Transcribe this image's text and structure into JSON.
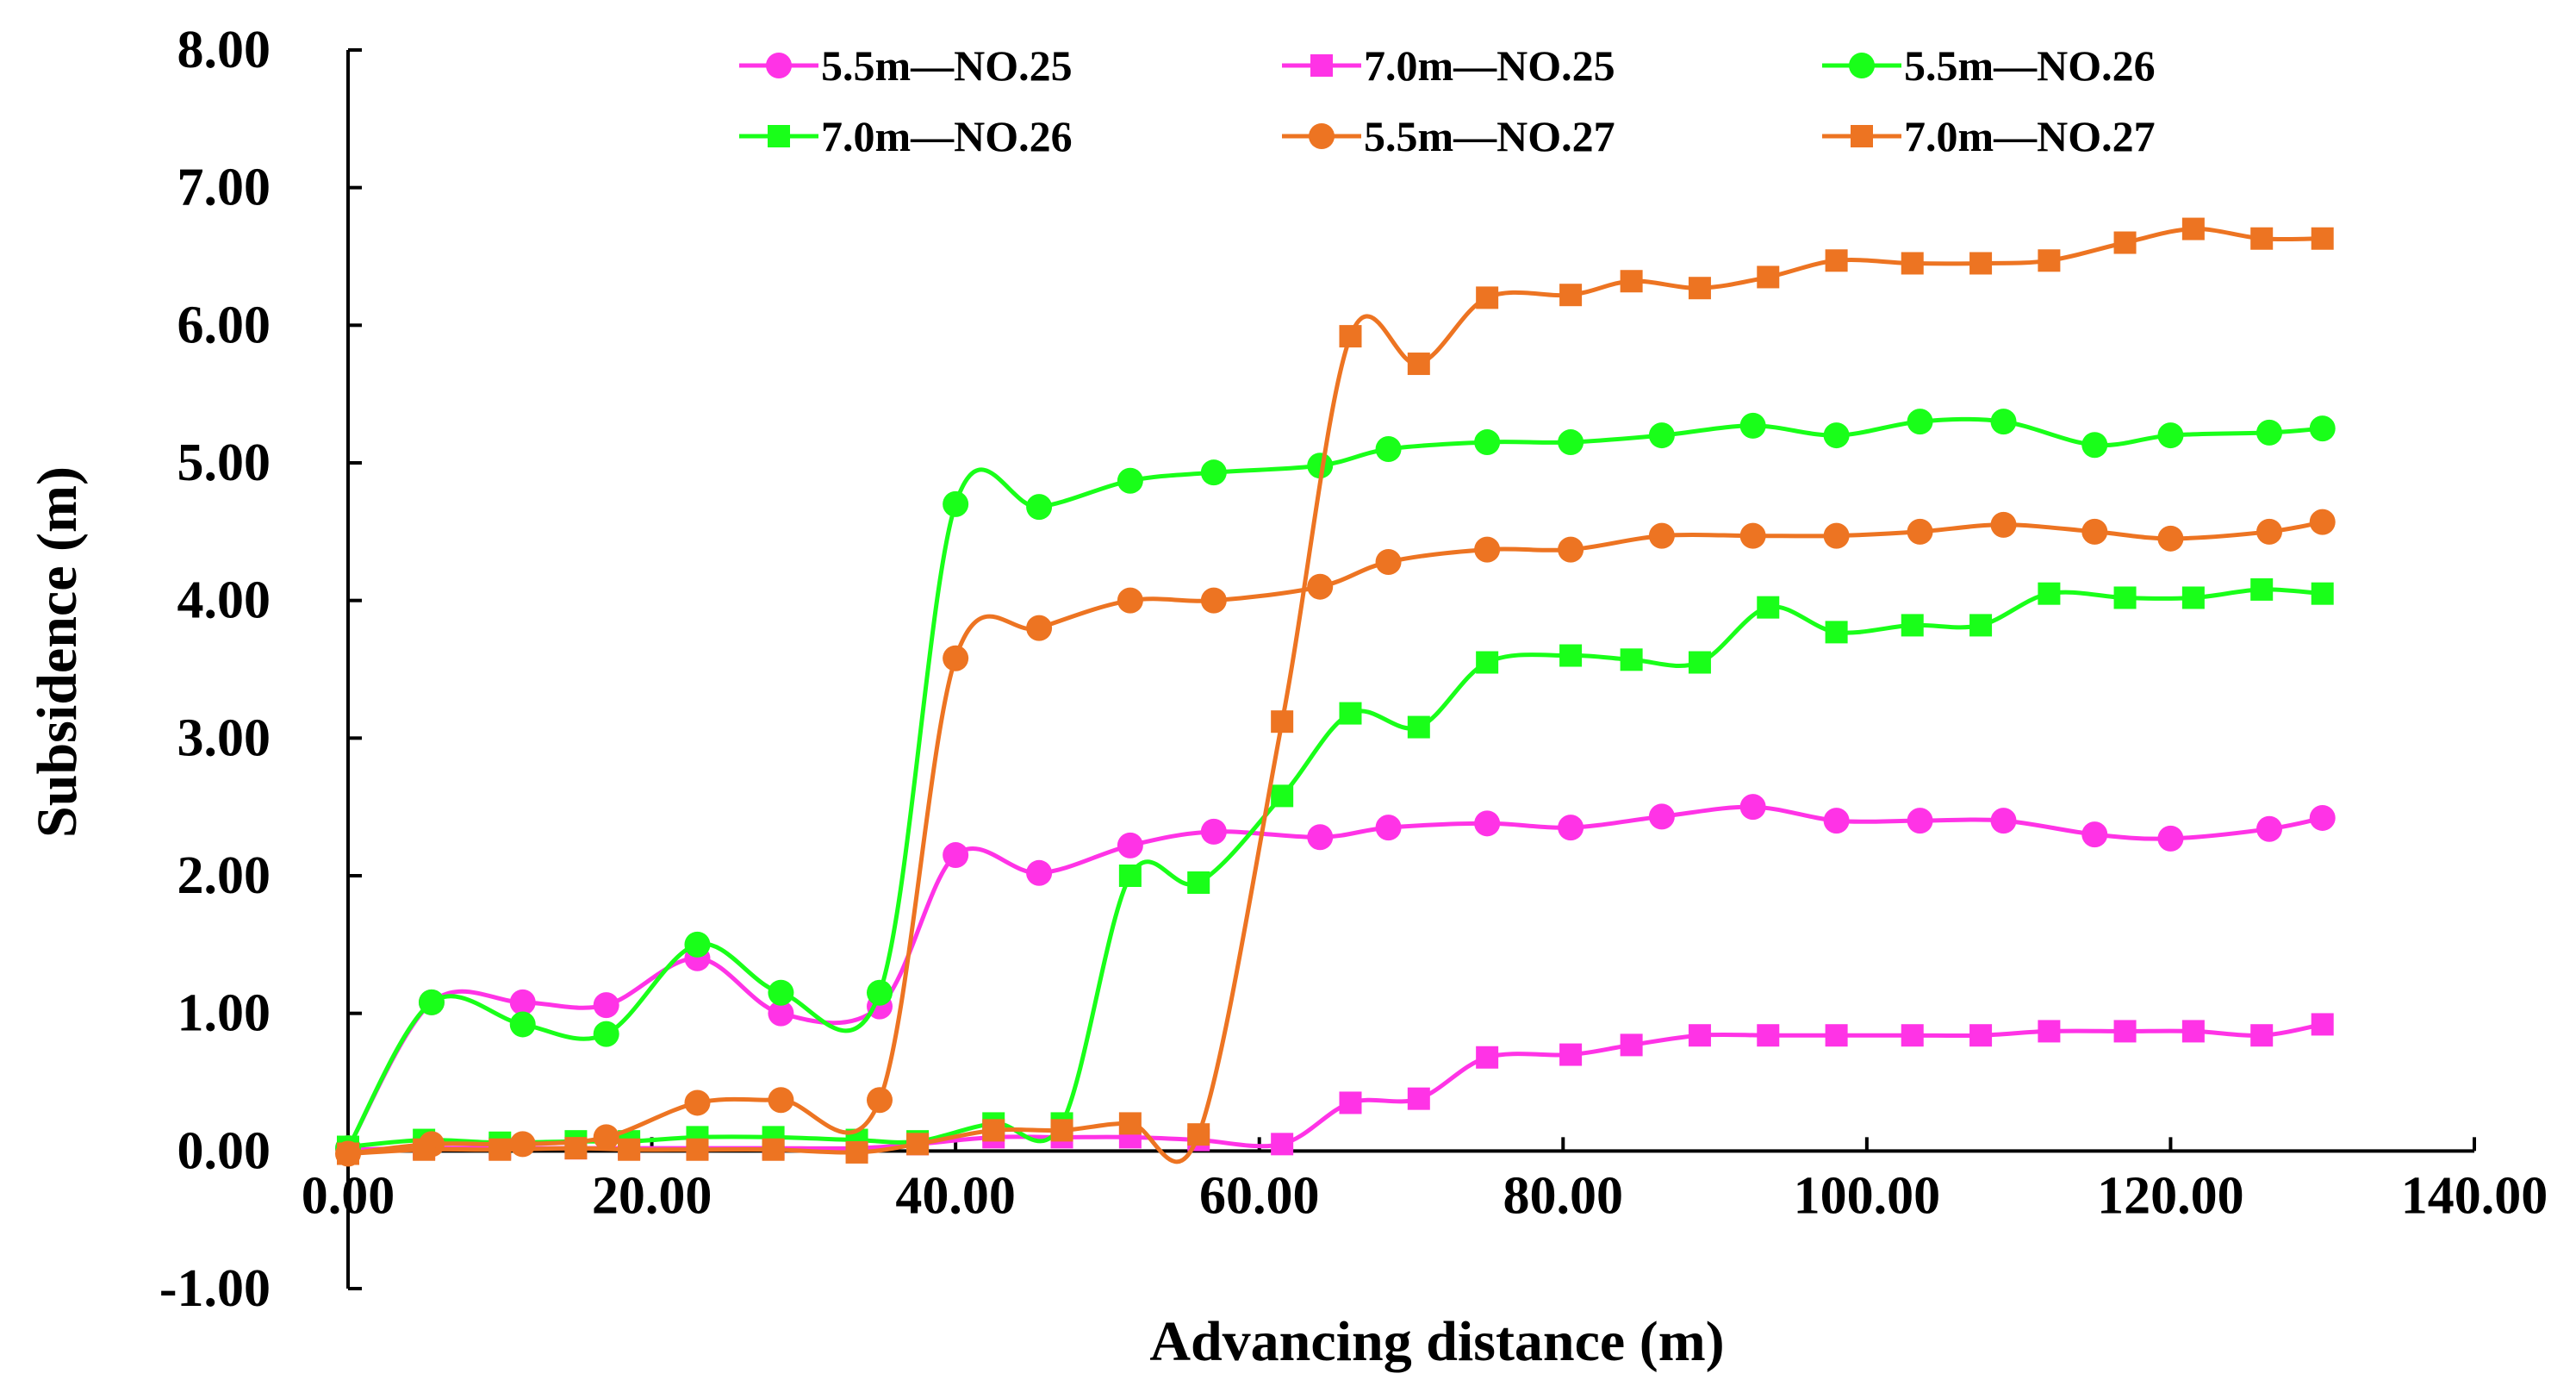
{
  "chart_data": {
    "type": "line",
    "title": "",
    "xlabel": "Advancing distance (m)",
    "ylabel": "Subsidence (m)",
    "xlim": [
      0,
      140
    ],
    "ylim": [
      -1,
      8
    ],
    "x_ticks": [
      "0.00",
      "20.00",
      "40.00",
      "60.00",
      "80.00",
      "100.00",
      "120.00",
      "140.00"
    ],
    "y_ticks": [
      "-1.00",
      "0.00",
      "1.00",
      "2.00",
      "3.00",
      "4.00",
      "5.00",
      "6.00",
      "7.00",
      "8.00"
    ],
    "x_tick_values": [
      0,
      20,
      40,
      60,
      80,
      100,
      120,
      140
    ],
    "y_tick_values": [
      -1,
      0,
      1,
      2,
      3,
      4,
      5,
      6,
      7,
      8
    ],
    "legend_position": "top-right",
    "series": [
      {
        "name": "5.5m—NO.25",
        "color": "#ff33e6",
        "marker": "circle",
        "x": [
          0,
          5.5,
          11.5,
          17,
          23,
          28.5,
          35,
          40,
          45.5,
          51.5,
          57,
          64,
          68.5,
          75,
          80.5,
          86.5,
          92.5,
          98,
          103.5,
          109,
          115,
          120,
          126.5,
          130
        ],
        "y": [
          0.02,
          1.08,
          1.08,
          1.06,
          1.4,
          1.0,
          1.05,
          2.15,
          2.02,
          2.22,
          2.32,
          2.28,
          2.35,
          2.38,
          2.35,
          2.43,
          2.5,
          2.4,
          2.4,
          2.4,
          2.3,
          2.27,
          2.34,
          2.42
        ]
      },
      {
        "name": "7.0m—NO.25",
        "color": "#ff33e6",
        "marker": "square",
        "x": [
          0,
          5,
          10,
          15,
          18.5,
          23,
          28,
          33.5,
          37.5,
          42.5,
          47,
          51.5,
          56,
          61.5,
          66,
          70.5,
          75,
          80.5,
          84.5,
          89,
          93.5,
          98,
          103,
          107.5,
          112,
          117,
          121.5,
          126,
          130
        ],
        "y": [
          0.01,
          0.02,
          0.02,
          0.02,
          0.02,
          0.02,
          0.02,
          0.02,
          0.05,
          0.1,
          0.1,
          0.1,
          0.08,
          0.05,
          0.35,
          0.38,
          0.68,
          0.7,
          0.77,
          0.84,
          0.84,
          0.84,
          0.84,
          0.84,
          0.87,
          0.87,
          0.87,
          0.84,
          0.92
        ]
      },
      {
        "name": "5.5m—NO.26",
        "color": "#19ff19",
        "marker": "circle",
        "x": [
          0,
          5.5,
          11.5,
          17,
          23,
          28.5,
          35,
          40,
          45.5,
          51.5,
          57,
          64,
          68.5,
          75,
          80.5,
          86.5,
          92.5,
          98,
          103.5,
          109,
          115,
          120,
          126.5,
          130
        ],
        "y": [
          0.02,
          1.08,
          0.92,
          0.85,
          1.5,
          1.15,
          1.15,
          4.7,
          4.68,
          4.87,
          4.93,
          4.98,
          5.1,
          5.15,
          5.15,
          5.2,
          5.27,
          5.2,
          5.3,
          5.3,
          5.13,
          5.2,
          5.22,
          5.25
        ]
      },
      {
        "name": "7.0m—NO.26",
        "color": "#19ff19",
        "marker": "square",
        "x": [
          0,
          5,
          10,
          15,
          18.5,
          23,
          28,
          33.5,
          37.5,
          42.5,
          47,
          51.5,
          56,
          61.5,
          66,
          70.5,
          75,
          80.5,
          84.5,
          89,
          93.5,
          98,
          103,
          107.5,
          112,
          117,
          121.5,
          126,
          130
        ],
        "y": [
          0.03,
          0.08,
          0.06,
          0.07,
          0.07,
          0.1,
          0.1,
          0.08,
          0.07,
          0.2,
          0.2,
          2.0,
          1.95,
          2.58,
          3.18,
          3.08,
          3.55,
          3.6,
          3.57,
          3.55,
          3.95,
          3.77,
          3.82,
          3.82,
          4.05,
          4.02,
          4.02,
          4.08,
          4.05
        ]
      },
      {
        "name": "5.5m—NO.27",
        "color": "#ed7422",
        "marker": "circle",
        "x": [
          0,
          5.5,
          11.5,
          17,
          23,
          28.5,
          35,
          40,
          45.5,
          51.5,
          57,
          64,
          68.5,
          75,
          80.5,
          86.5,
          92.5,
          98,
          103.5,
          109,
          115,
          120,
          126.5,
          130
        ],
        "y": [
          -0.02,
          0.05,
          0.05,
          0.1,
          0.35,
          0.37,
          0.37,
          3.58,
          3.8,
          4.0,
          4.0,
          4.1,
          4.28,
          4.37,
          4.37,
          4.47,
          4.47,
          4.47,
          4.5,
          4.55,
          4.5,
          4.45,
          4.5,
          4.57
        ]
      },
      {
        "name": "7.0m—NO.27",
        "color": "#ed7422",
        "marker": "square",
        "x": [
          0,
          5,
          10,
          15,
          18.5,
          23,
          28,
          33.5,
          37.5,
          42.5,
          47,
          51.5,
          56,
          61.5,
          66,
          70.5,
          75,
          80.5,
          84.5,
          89,
          93.5,
          98,
          103,
          107.5,
          112,
          117,
          121.5,
          126,
          130
        ],
        "y": [
          -0.02,
          0.01,
          0.01,
          0.02,
          0.01,
          0.01,
          0.01,
          -0.01,
          0.05,
          0.15,
          0.15,
          0.2,
          0.12,
          3.12,
          5.92,
          5.72,
          6.2,
          6.22,
          6.32,
          6.27,
          6.35,
          6.47,
          6.45,
          6.45,
          6.47,
          6.6,
          6.7,
          6.63,
          6.63
        ]
      }
    ]
  }
}
